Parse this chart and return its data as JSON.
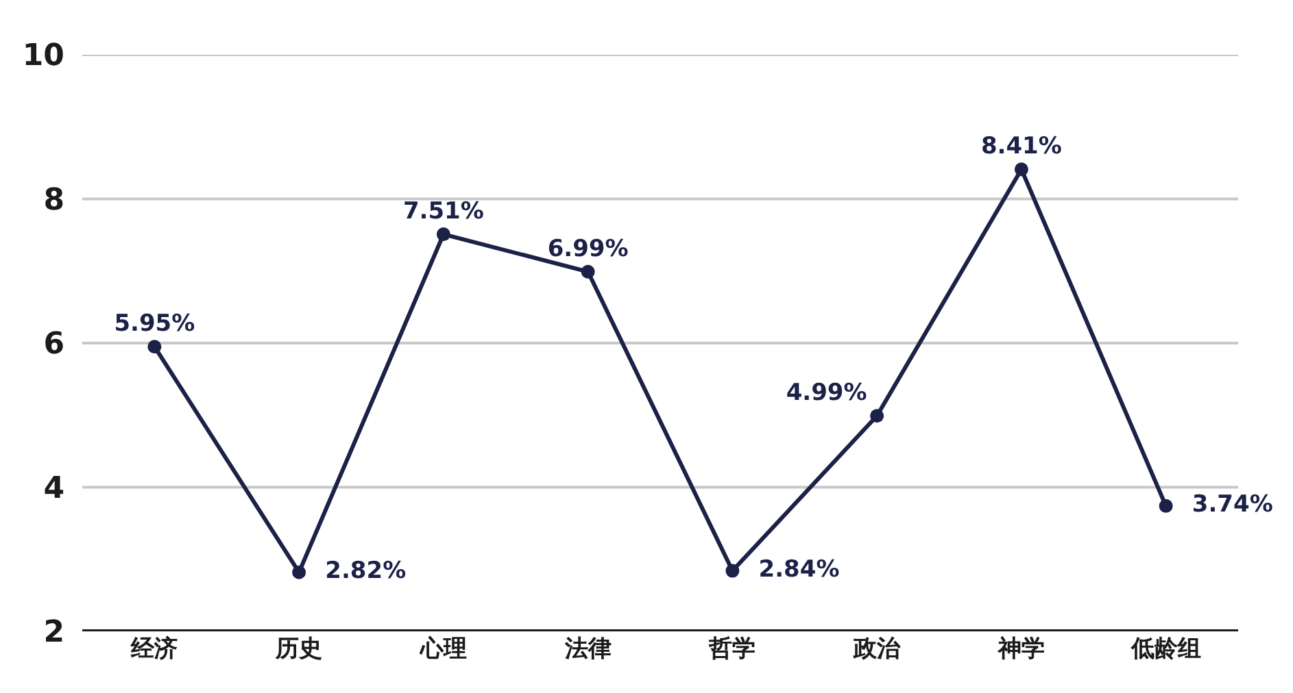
{
  "chart_data": {
    "type": "line",
    "categories": [
      "经济",
      "历史",
      "心理",
      "法律",
      "哲学",
      "政治",
      "神学",
      "低龄组"
    ],
    "series": [
      {
        "color": "#1b2147",
        "values": [
          5.95,
          2.82,
          7.51,
          6.99,
          2.84,
          4.99,
          8.41,
          3.74
        ],
        "value_labels": [
          "5.95%",
          "2.82%",
          "7.51%",
          "6.99%",
          "2.84%",
          "4.99%",
          "8.41%",
          "3.74%"
        ]
      }
    ],
    "ylim": [
      2,
      10
    ],
    "yticks": [
      2,
      4,
      6,
      8,
      10
    ],
    "grid": "y",
    "marker": "circle",
    "line_style": "solid"
  }
}
